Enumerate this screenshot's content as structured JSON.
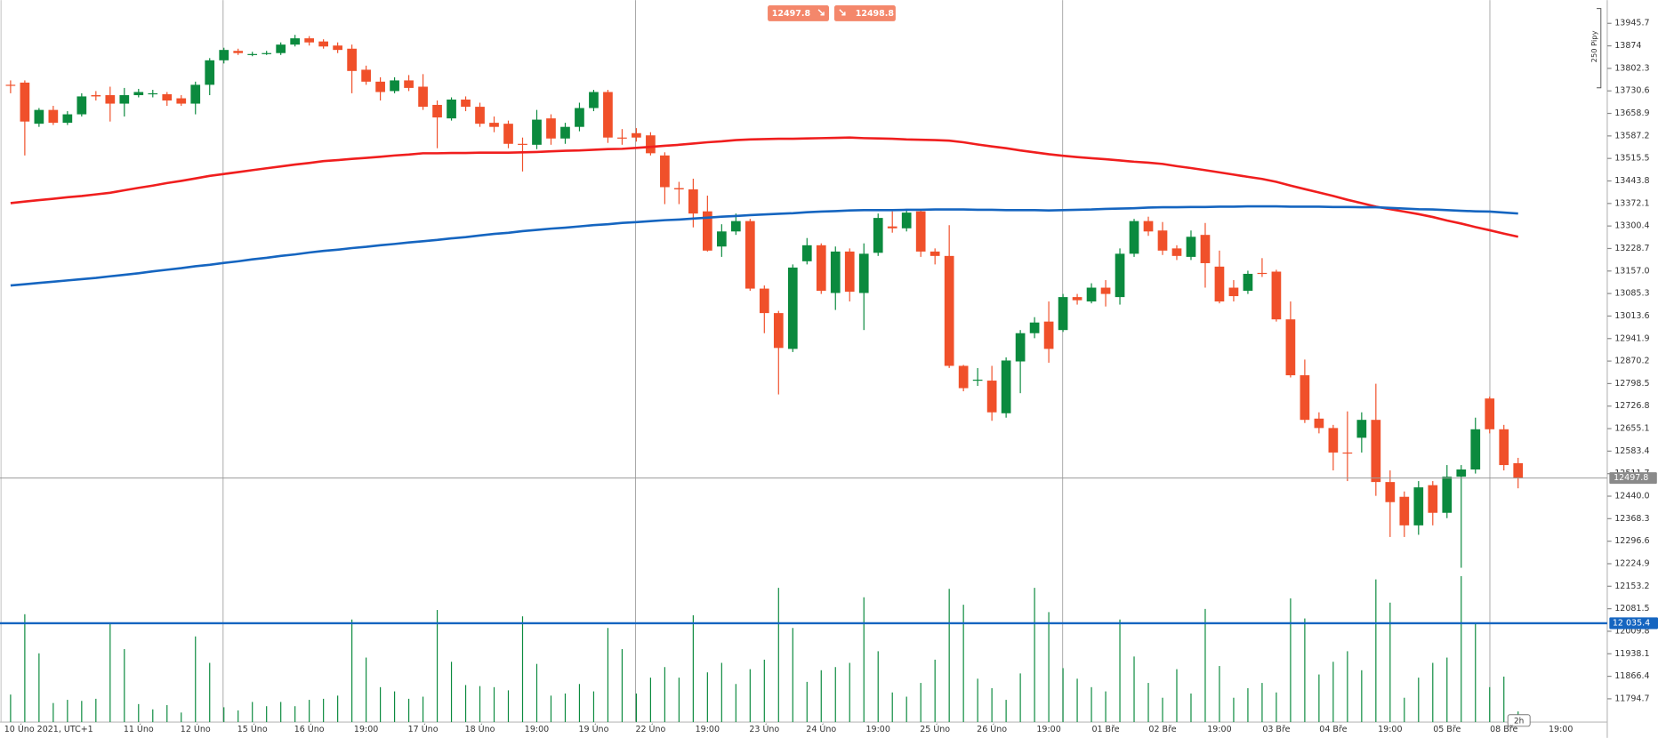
{
  "chart_data": {
    "type": "candlestick",
    "categories": [
      "10 Úno 2021, UTC+1",
      null,
      null,
      null,
      null,
      null,
      null,
      null,
      null,
      "11 Úno",
      null,
      null,
      null,
      "12 Úno",
      null,
      null,
      null,
      "15 Úno",
      null,
      null,
      null,
      "16 Úno",
      null,
      null,
      null,
      "19:00",
      null,
      null,
      null,
      "17 Úno",
      null,
      null,
      null,
      "18 Úno",
      null,
      null,
      null,
      "19:00",
      null,
      null,
      null,
      "19 Úno",
      null,
      null,
      null,
      "22 Úno",
      null,
      null,
      null,
      "19:00",
      null,
      null,
      null,
      "23 Úno",
      null,
      null,
      null,
      "24 Úno",
      null,
      null,
      null,
      "19:00",
      null,
      null,
      null,
      "25 Úno",
      null,
      null,
      null,
      "26 Úno",
      null,
      null,
      null,
      "19:00",
      null,
      null,
      null,
      "01 Bře",
      null,
      null,
      null,
      "02 Bře",
      null,
      null,
      null,
      "19:00",
      null,
      null,
      null,
      "03 Bře",
      null,
      null,
      null,
      "04 Bře",
      null,
      null,
      null,
      "19:00",
      null,
      null,
      null,
      "05 Bře",
      null,
      null,
      null,
      "08 Bře",
      null,
      null,
      null,
      "19:00"
    ],
    "open": [
      13750,
      13757,
      13626,
      13670,
      13629,
      13656,
      13717,
      13717,
      13690,
      13717,
      13723,
      13720,
      13707,
      13690,
      13750,
      13828,
      13858,
      13848,
      13851,
      13851,
      13878,
      13898,
      13888,
      13875,
      13865,
      13798,
      13760,
      13730,
      13764,
      13744,
      13686,
      13643,
      13703,
      13680,
      13629,
      13626,
      13562,
      13559,
      13643,
      13579,
      13616,
      13676,
      13727,
      13582,
      13596,
      13589,
      13525,
      13421,
      13417,
      13347,
      13235,
      13283,
      13316,
      13101,
      13023,
      12909,
      13188,
      13239,
      13087,
      13219,
      13087,
      13215,
      13299,
      13293,
      13347,
      13219,
      13205,
      12855,
      12811,
      12808,
      12704,
      12869,
      12959,
      12996,
      12969,
      13074,
      13060,
      13104,
      13074,
      13212,
      13316,
      13286,
      13229,
      13202,
      13272,
      13171,
      13104,
      13094,
      13151,
      13155,
      13003,
      12825,
      12687,
      12657,
      12579,
      12626,
      12683,
      12485,
      12438,
      12347,
      12475,
      12387,
      12502,
      12525,
      12751,
      12653,
      12545,
      null,
      null,
      null
    ],
    "high": [
      13764,
      13764,
      13676,
      13683,
      13666,
      13723,
      13730,
      13744,
      13740,
      13737,
      13734,
      13727,
      13717,
      13760,
      13835,
      13868,
      13865,
      13855,
      13858,
      13885,
      13909,
      13905,
      13895,
      13885,
      13878,
      13811,
      13774,
      13774,
      13781,
      13784,
      13700,
      13710,
      13713,
      13693,
      13649,
      13636,
      13582,
      13670,
      13656,
      13629,
      13693,
      13734,
      13734,
      13609,
      13612,
      13599,
      13535,
      13441,
      13451,
      13397,
      13306,
      13340,
      13323,
      13111,
      13030,
      13178,
      13262,
      13245,
      13235,
      13229,
      13245,
      13340,
      13347,
      13350,
      13353,
      13229,
      13303,
      12858,
      12848,
      12855,
      12882,
      12969,
      13010,
      13060,
      13084,
      13084,
      13118,
      13128,
      13229,
      13323,
      13330,
      13313,
      13239,
      13286,
      13310,
      13222,
      13128,
      13158,
      13198,
      13161,
      13060,
      12875,
      12707,
      12667,
      12710,
      12707,
      12798,
      12522,
      12455,
      12488,
      12488,
      12539,
      12539,
      12690,
      12757,
      12667,
      12562,
      null,
      null,
      null
    ],
    "low": [
      13723,
      13525,
      13616,
      13622,
      13622,
      13649,
      13700,
      13633,
      13649,
      13710,
      13710,
      13683,
      13683,
      13656,
      13717,
      13818,
      13845,
      13841,
      13845,
      13845,
      13872,
      13875,
      13865,
      13851,
      13723,
      13750,
      13700,
      13723,
      13730,
      13670,
      13548,
      13636,
      13666,
      13616,
      13599,
      13548,
      13474,
      13545,
      13559,
      13562,
      13602,
      13666,
      13565,
      13559,
      13569,
      13525,
      13370,
      13370,
      13296,
      13219,
      13202,
      13272,
      13094,
      12959,
      12764,
      12899,
      13178,
      13084,
      13033,
      13060,
      12969,
      13205,
      13279,
      13283,
      13202,
      13178,
      12848,
      12774,
      12791,
      12680,
      12690,
      12768,
      12943,
      12865,
      12963,
      13050,
      13054,
      13044,
      13050,
      13202,
      13269,
      13208,
      13192,
      13192,
      13104,
      13054,
      13060,
      13084,
      13138,
      12996,
      12818,
      12673,
      12640,
      12522,
      12488,
      12579,
      12441,
      12310,
      12310,
      12317,
      12347,
      12370,
      12212,
      12512,
      12640,
      12522,
      12465,
      null,
      null,
      null
    ],
    "close": [
      13747,
      13633,
      13670,
      13629,
      13656,
      13713,
      13713,
      13690,
      13717,
      13727,
      13723,
      13700,
      13690,
      13750,
      13828,
      13861,
      13851,
      13848,
      13851,
      13878,
      13898,
      13885,
      13872,
      13861,
      13794,
      13760,
      13727,
      13764,
      13740,
      13680,
      13646,
      13703,
      13680,
      13626,
      13616,
      13562,
      13559,
      13639,
      13579,
      13616,
      13676,
      13727,
      13582,
      13579,
      13582,
      13532,
      13424,
      13417,
      13340,
      13222,
      13283,
      13316,
      13101,
      13023,
      12912,
      13168,
      13239,
      13094,
      13219,
      13091,
      13212,
      13326,
      13293,
      13343,
      13219,
      13205,
      12855,
      12784,
      12811,
      12707,
      12872,
      12959,
      12993,
      12909,
      13074,
      13064,
      13104,
      13084,
      13212,
      13316,
      13283,
      13222,
      13205,
      13266,
      13182,
      13060,
      13077,
      13148,
      13148,
      13003,
      12825,
      12683,
      12657,
      12579,
      12576,
      12683,
      12485,
      12421,
      12347,
      12468,
      12387,
      12502,
      12525,
      12653,
      12653,
      12539,
      12498,
      null,
      null,
      null
    ],
    "volume": [
      26,
      102,
      65,
      18,
      21,
      20,
      22,
      93,
      69,
      17,
      12,
      16,
      9,
      81,
      56,
      14,
      11,
      19,
      15,
      19,
      15,
      21,
      22,
      25,
      97,
      61,
      33,
      29,
      22,
      24,
      106,
      57,
      35,
      34,
      33,
      30,
      100,
      55,
      25,
      27,
      36,
      29,
      89,
      69,
      27,
      42,
      52,
      42,
      101,
      47,
      56,
      36,
      50,
      59,
      127,
      89,
      38,
      49,
      52,
      56,
      118,
      67,
      28,
      24,
      37,
      59,
      126,
      111,
      41,
      32,
      21,
      46,
      127,
      104,
      51,
      41,
      33,
      29,
      97,
      62,
      37,
      23,
      50,
      27,
      107,
      53,
      23,
      32,
      37,
      28,
      117,
      98,
      45,
      57,
      67,
      49,
      135,
      113,
      23,
      42,
      56,
      61,
      138,
      94,
      33,
      43,
      10,
      null,
      null,
      null
    ],
    "up_color": "#0b8a3e",
    "down_color": "#f0502a",
    "volume_color": "#0b8a3e",
    "series": [
      {
        "color": "#f01e1e",
        "values": [
          13373,
          13378,
          13383,
          13387,
          13392,
          13396,
          13401,
          13406,
          13414,
          13422,
          13429,
          13437,
          13444,
          13452,
          13460,
          13466,
          13472,
          13478,
          13484,
          13490,
          13496,
          13501,
          13507,
          13510,
          13514,
          13517,
          13521,
          13525,
          13528,
          13532,
          13532,
          13533,
          13533,
          13534,
          13534,
          13534,
          13535,
          13536,
          13538,
          13540,
          13541,
          13543,
          13545,
          13546,
          13549,
          13552,
          13556,
          13559,
          13563,
          13567,
          13570,
          13574,
          13576,
          13577,
          13578,
          13578,
          13579,
          13580,
          13581,
          13582,
          13580,
          13579,
          13578,
          13576,
          13575,
          13574,
          13572,
          13567,
          13560,
          13554,
          13548,
          13541,
          13535,
          13529,
          13524,
          13520,
          13516,
          13513,
          13509,
          13505,
          13502,
          13498,
          13491,
          13485,
          13478,
          13471,
          13464,
          13457,
          13450,
          13441,
          13429,
          13418,
          13407,
          13396,
          13384,
          13373,
          13362,
          13354,
          13346,
          13338,
          13329,
          13318,
          13308,
          13297,
          13287,
          13276,
          13266,
          null,
          null,
          null
        ]
      },
      {
        "color": "#1565c0",
        "values": [
          13111,
          13115,
          13119,
          13123,
          13127,
          13131,
          13135,
          13140,
          13145,
          13150,
          13156,
          13161,
          13166,
          13172,
          13177,
          13183,
          13188,
          13194,
          13199,
          13205,
          13210,
          13216,
          13221,
          13225,
          13230,
          13234,
          13239,
          13243,
          13248,
          13252,
          13256,
          13261,
          13265,
          13270,
          13275,
          13279,
          13284,
          13288,
          13292,
          13295,
          13299,
          13303,
          13306,
          13310,
          13313,
          13316,
          13319,
          13321,
          13324,
          13327,
          13330,
          13332,
          13335,
          13337,
          13339,
          13341,
          13344,
          13346,
          13348,
          13350,
          13351,
          13351,
          13351,
          13352,
          13352,
          13353,
          13353,
          13353,
          13352,
          13352,
          13351,
          13351,
          13351,
          13350,
          13351,
          13352,
          13353,
          13355,
          13356,
          13357,
          13359,
          13360,
          13360,
          13361,
          13361,
          13362,
          13362,
          13363,
          13363,
          13363,
          13362,
          13362,
          13362,
          13361,
          13361,
          13360,
          13360,
          13358,
          13356,
          13354,
          13353,
          13351,
          13349,
          13347,
          13346,
          13343,
          13340,
          null,
          null,
          null
        ]
      }
    ],
    "ylim": [
      11720.7,
      14019.7
    ],
    "yticks": [
      13945.7,
      13874,
      13802.3,
      13730.6,
      13658.9,
      13587.2,
      13515.5,
      13443.8,
      13372.1,
      13300.4,
      13228.7,
      {
        "value": 13157,
        "label": "13157.0"
      },
      13085.3,
      13013.6,
      12941.9,
      12870.2,
      12798.5,
      12726.8,
      12655.1,
      12583.4,
      12511.7,
      {
        "value": 12440,
        "label": "12440.0"
      },
      12368.3,
      12296.6,
      12224.9,
      12153.2,
      12081.5,
      12009.8,
      11938.1,
      11866.4,
      11794.7
    ],
    "current_price": 12497.8,
    "level": {
      "value": 12035.4,
      "label": "12 035.4"
    },
    "sell_price": 12497.8,
    "buy_price": 12498.8,
    "pip_label": "250 Pipy",
    "timeframe": "2h"
  }
}
